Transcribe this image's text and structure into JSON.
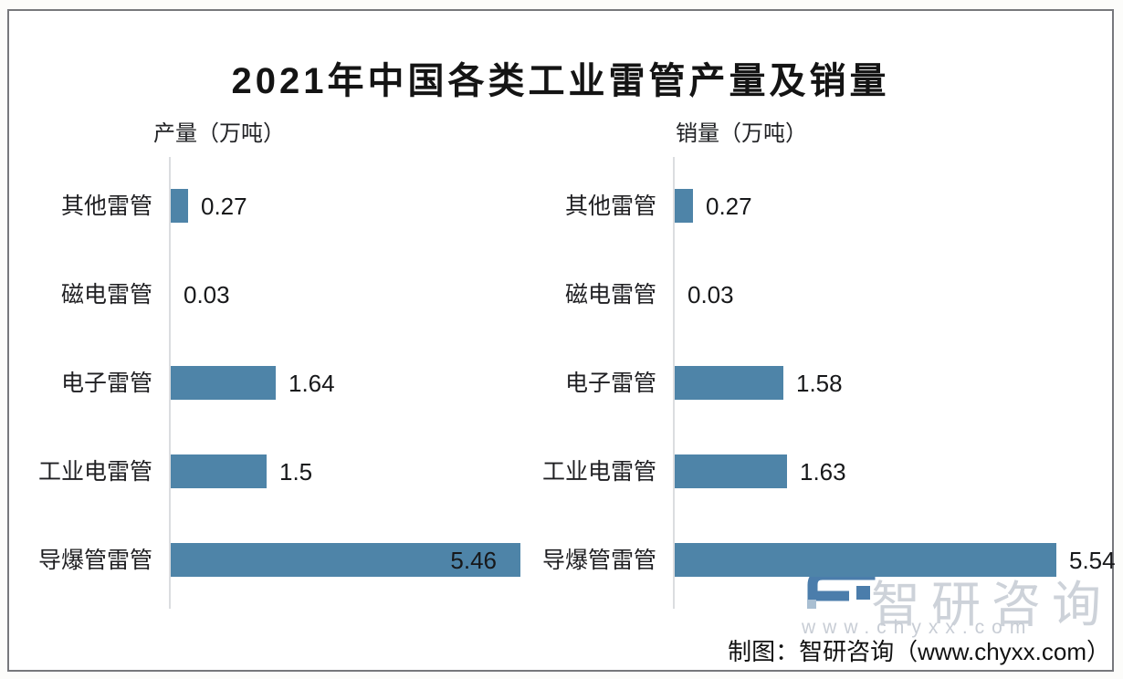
{
  "title": "2021年中国各类工业雷管产量及销量",
  "chart_data": [
    {
      "type": "bar",
      "orientation": "horizontal",
      "title": "产量（万吨）",
      "categories": [
        "其他雷管",
        "磁电雷管",
        "电子雷管",
        "工业电雷管",
        "导爆管雷管"
      ],
      "values": [
        0.27,
        0.03,
        1.64,
        1.5,
        5.46
      ],
      "value_labels": [
        "0.27",
        "0.03",
        "1.64",
        "1.5",
        "5.46"
      ],
      "value_label_inside": [
        false,
        false,
        false,
        false,
        true
      ],
      "xlim": [
        0,
        5.46
      ],
      "grid": false,
      "legend": false,
      "bar_color": "#4e84a8"
    },
    {
      "type": "bar",
      "orientation": "horizontal",
      "title": "销量（万吨）",
      "categories": [
        "其他雷管",
        "磁电雷管",
        "电子雷管",
        "工业电雷管",
        "导爆管雷管"
      ],
      "values": [
        0.27,
        0.03,
        1.58,
        1.63,
        5.54
      ],
      "value_labels": [
        "0.27",
        "0.03",
        "1.58",
        "1.63",
        "5.54"
      ],
      "value_label_inside": [
        false,
        false,
        false,
        false,
        false
      ],
      "xlim": [
        0,
        5.54
      ],
      "grid": false,
      "legend": false,
      "bar_color": "#4e84a8"
    }
  ],
  "watermark": {
    "brand": "智研咨询",
    "url": "www.chyxx.com"
  },
  "footer": {
    "credit": "制图：智研咨询（www.chyxx.com）"
  },
  "colors": {
    "bar": "#4e84a8",
    "axis_line": "#dbdde0",
    "card_border": "#77787c",
    "page_background": "#fcfcfa",
    "watermark_text": "#cdd2d9",
    "logo_blue": "#4b7dab",
    "logo_gray": "#a9bfd2"
  }
}
